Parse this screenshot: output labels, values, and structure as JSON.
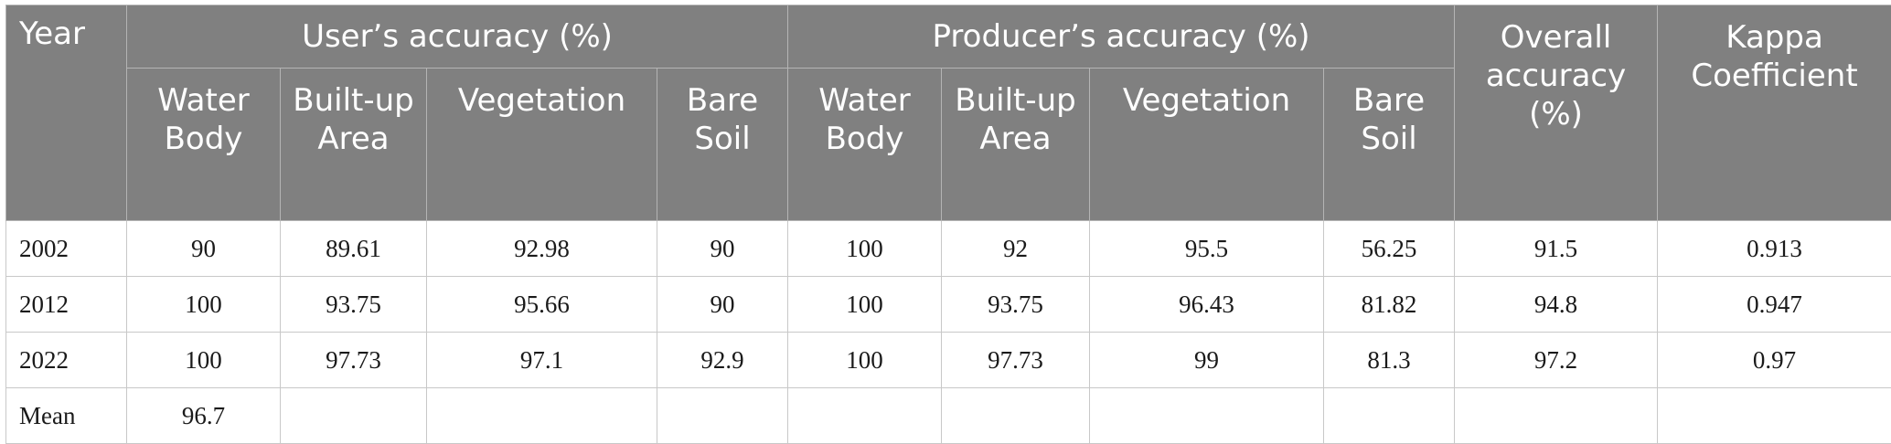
{
  "header": {
    "year": "Year",
    "users_accuracy": "User’s accuracy (%)",
    "producers_accuracy": "Producer’s accuracy (%)",
    "overall_accuracy": "Overall accuracy (%)",
    "kappa": "Kappa Coefficient",
    "classes": {
      "water_body": "Water Body",
      "built_up": "Built-up Area",
      "vegetation": "Vegetation",
      "bare_soil": "Bare Soil"
    }
  },
  "rows": [
    {
      "year": "2002",
      "cells": [
        "90",
        "89.61",
        "92.98",
        "90",
        "100",
        "92",
        "95.5",
        "56.25",
        "91.5",
        "0.913"
      ]
    },
    {
      "year": "2012",
      "cells": [
        "100",
        "93.75",
        "95.66",
        "90",
        "100",
        "93.75",
        "96.43",
        "81.82",
        "94.8",
        "0.947"
      ]
    },
    {
      "year": "2022",
      "cells": [
        "100",
        "97.73",
        "97.1",
        "92.9",
        "100",
        "97.73",
        "99",
        "81.3",
        "97.2",
        "0.97"
      ]
    },
    {
      "year": "Mean",
      "cells": [
        "96.7",
        "",
        "",
        "",
        "",
        "",
        "",
        "",
        "",
        ""
      ]
    }
  ]
}
